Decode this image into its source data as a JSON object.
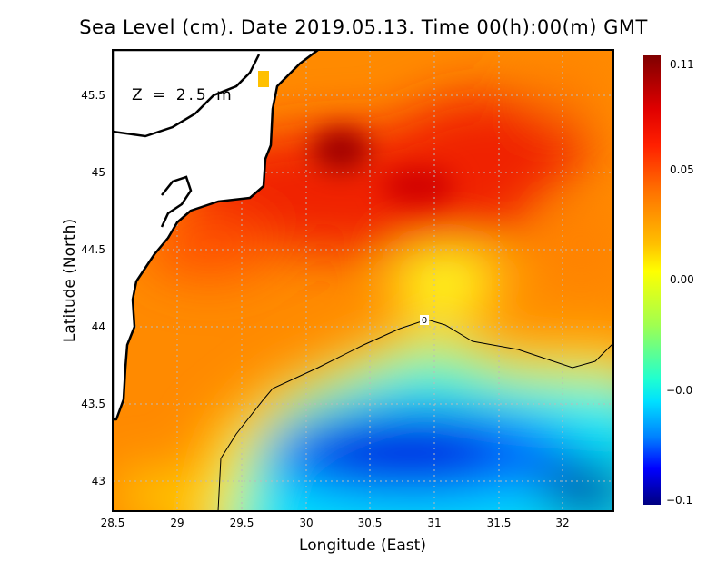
{
  "title": "Sea Level (cm). Date 2019.05.13. Time 00(h):00(m) GMT",
  "depth_label": "Z = 2.5 m",
  "x_axis": {
    "label": "Longitude (East)",
    "ticks": [
      "28.5",
      "29",
      "29.5",
      "30",
      "30.5",
      "31",
      "31.5",
      "32"
    ],
    "range": [
      28.5,
      32.4
    ]
  },
  "y_axis": {
    "label": "Latitude (North)",
    "ticks": [
      "45.5",
      "45",
      "44.5",
      "44",
      "43.5",
      "43"
    ],
    "range": [
      42.8,
      45.8
    ]
  },
  "colorbar": {
    "labels": [
      "0.11",
      "0.05",
      "0.00",
      "−0.0",
      "−0.1"
    ],
    "colors": [
      "#800000",
      "#ff0000",
      "#ff8000",
      "#ffff00",
      "#80ff80",
      "#00ffff",
      "#0080ff",
      "#0000ff",
      "#000080"
    ]
  },
  "contour_label": "0"
}
